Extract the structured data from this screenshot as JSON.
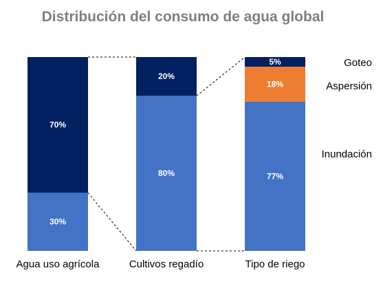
{
  "chart_data": {
    "type": "bar",
    "stacked": true,
    "percent_stacked": true,
    "title": "Distribución del consumo de agua global",
    "categories": [
      "Agua uso agrícola",
      "Cultivos regadío",
      "Tipo de riego"
    ],
    "bars": [
      {
        "category": "Agua uso agrícola",
        "segments": [
          {
            "value": 30,
            "label": "30%",
            "color": "#4472c4"
          },
          {
            "value": 70,
            "label": "70%",
            "color": "#002060"
          }
        ]
      },
      {
        "category": "Cultivos regadío",
        "segments": [
          {
            "value": 80,
            "label": "80%",
            "color": "#4472c4"
          },
          {
            "value": 20,
            "label": "20%",
            "color": "#002060"
          }
        ]
      },
      {
        "category": "Tipo de riego",
        "segments": [
          {
            "value": 77,
            "label": "77%",
            "color": "#4472c4",
            "name": "Inundación"
          },
          {
            "value": 18,
            "label": "18%",
            "color": "#ed7d31",
            "name": "Aspersión"
          },
          {
            "value": 5,
            "label": "5%",
            "color": "#002060",
            "name": "Goteo"
          }
        ]
      }
    ],
    "connectors": [
      {
        "from_bar": 0,
        "to_bar": 1,
        "from_range": [
          30,
          100
        ],
        "style": "dashed"
      },
      {
        "from_bar": 1,
        "to_bar": 2,
        "from_range": [
          0,
          80
        ],
        "style": "dashed"
      }
    ],
    "series_labels": [
      "Goteo",
      "Aspersión",
      "Inundación"
    ],
    "ylim": [
      0,
      100
    ],
    "grid": false
  }
}
